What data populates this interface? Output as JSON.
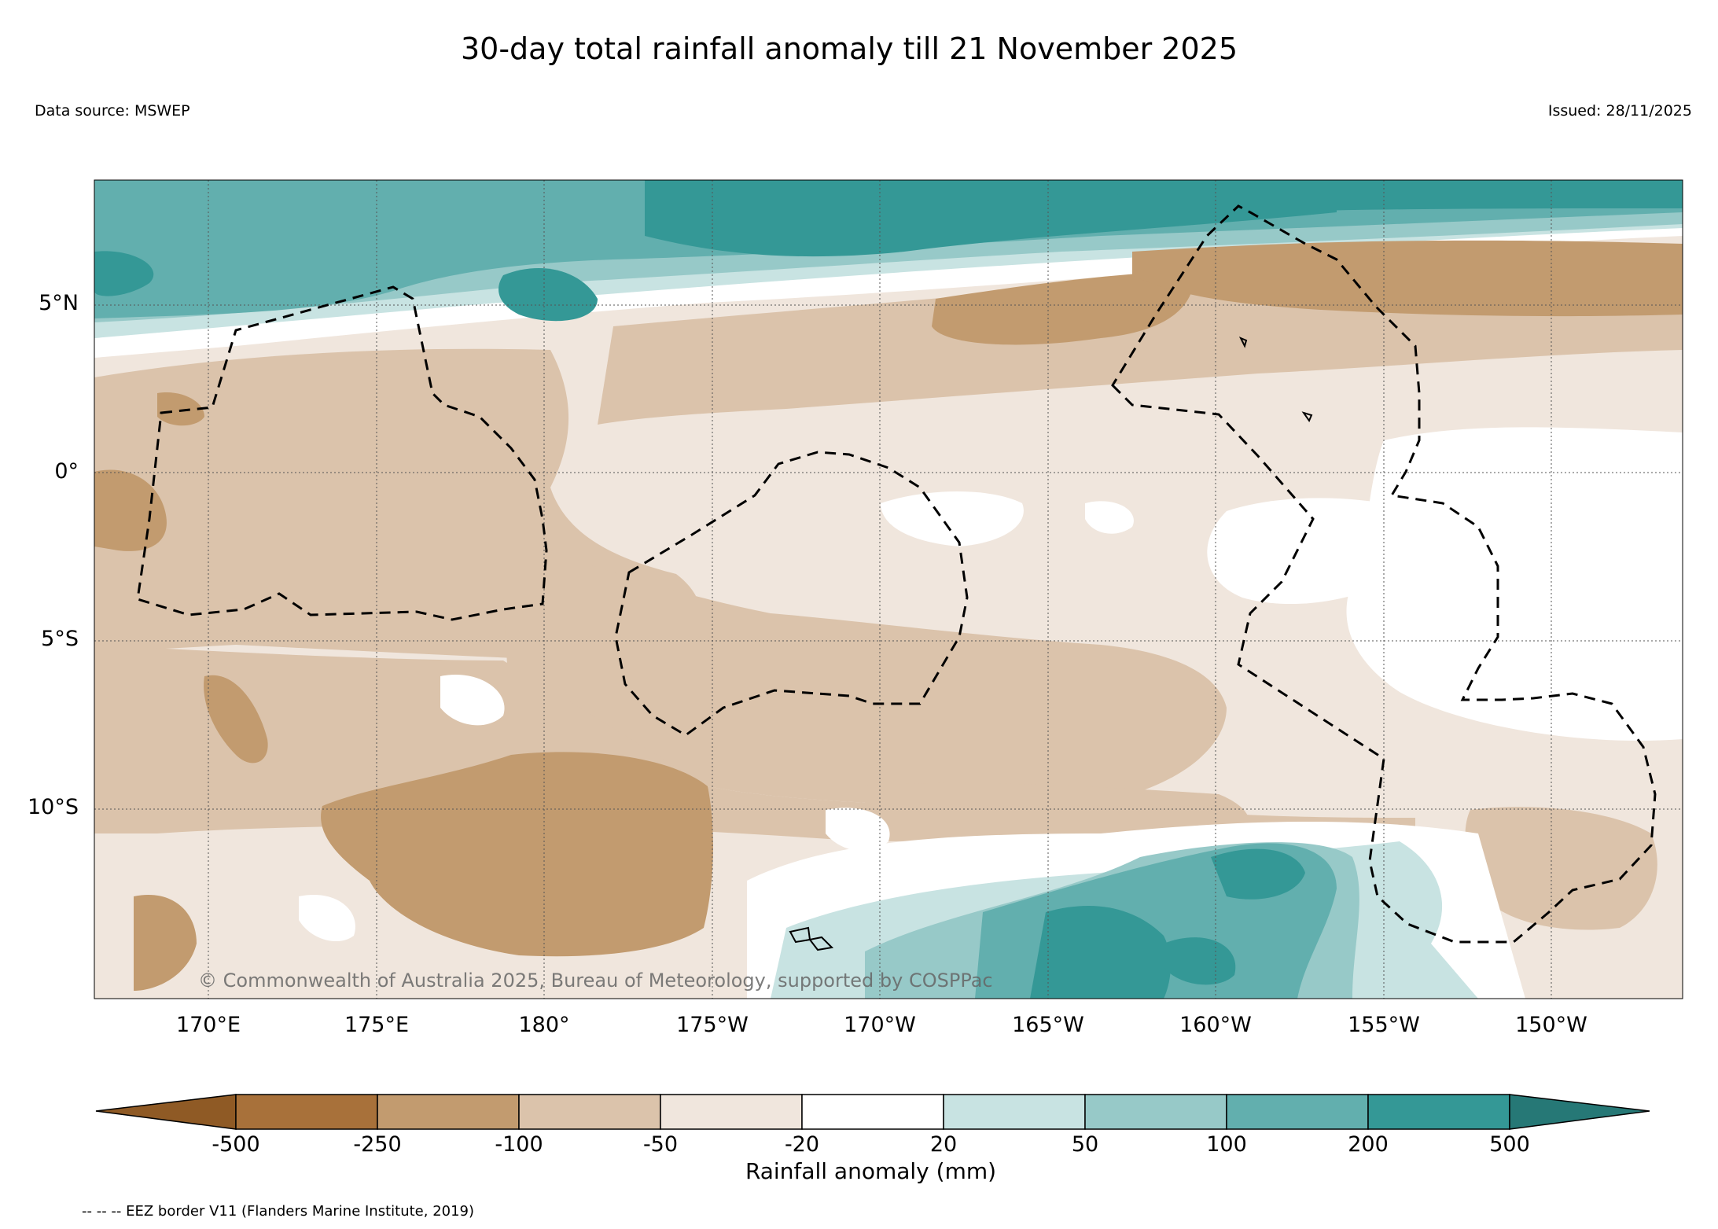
{
  "title": "30-day total rainfall anomaly till 21 November 2025",
  "data_source": "Data source: MSWEP",
  "issued": "Issued: 28/11/2025",
  "copyright": "© Commonwealth of Australia 2025, Bureau of Meteorology, supported by COSPPac",
  "eez_note": "-- -- -- EEZ border V11 (Flanders Marine Institute, 2019)",
  "lat_labels": [
    "5°N",
    "0°",
    "5°S",
    "10°S"
  ],
  "lon_labels": [
    "170°E",
    "175°E",
    "180°",
    "175°W",
    "170°W",
    "165°W",
    "160°W",
    "155°W",
    "150°W"
  ],
  "colorbar": {
    "title": "Rainfall anomaly (mm)",
    "ticks": [
      "-500",
      "-250",
      "-100",
      "-50",
      "-20",
      "20",
      "50",
      "100",
      "200",
      "500"
    ],
    "colors": [
      "#8f5a25",
      "#a8713a",
      "#c29b6f",
      "#dbc3ab",
      "#f0e6dd",
      "#ffffff",
      "#c8e3e2",
      "#97c9c8",
      "#62afae",
      "#349896",
      "#267876"
    ]
  }
}
